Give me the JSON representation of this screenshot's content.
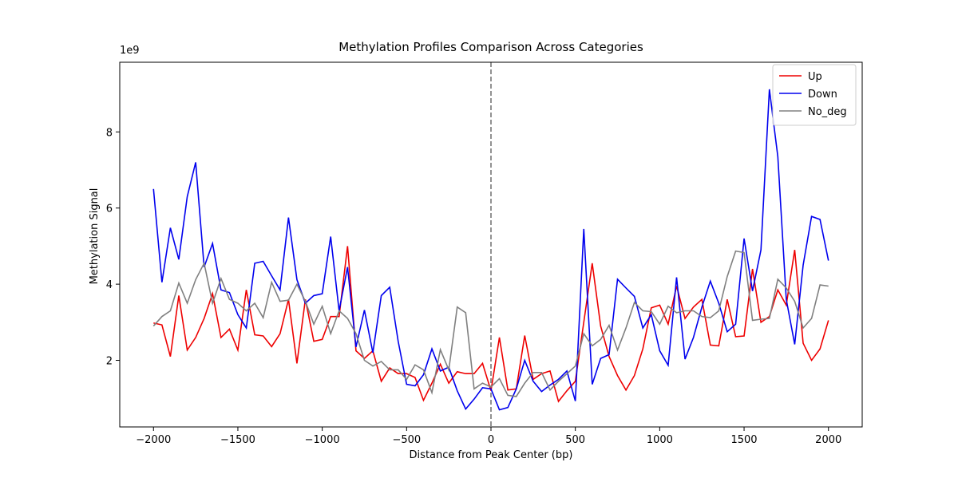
{
  "chart_data": {
    "type": "line",
    "title": "Methylation Profiles Comparison Across Categories",
    "x_label": "Distance from Peak Center (bp)",
    "y_label": "Methylation Signal",
    "y_offset_label": "1e9",
    "x": [
      -2000,
      -1950,
      -1900,
      -1850,
      -1800,
      -1750,
      -1700,
      -1650,
      -1600,
      -1550,
      -1500,
      -1450,
      -1400,
      -1350,
      -1300,
      -1250,
      -1200,
      -1150,
      -1100,
      -1050,
      -1000,
      -950,
      -900,
      -850,
      -800,
      -750,
      -700,
      -650,
      -600,
      -550,
      -500,
      -450,
      -400,
      -350,
      -300,
      -250,
      -200,
      -150,
      -100,
      -50,
      0,
      50,
      100,
      150,
      200,
      250,
      300,
      350,
      400,
      450,
      500,
      550,
      600,
      650,
      700,
      750,
      800,
      850,
      900,
      950,
      1000,
      1050,
      1100,
      1150,
      1200,
      1250,
      1300,
      1350,
      1400,
      1450,
      1500,
      1550,
      1600,
      1650,
      1700,
      1750,
      1800,
      1850,
      1900,
      1950,
      2000
    ],
    "series": [
      {
        "name": "Up",
        "color": "#ee0000",
        "values": [
          2.98,
          2.93,
          2.1,
          3.7,
          2.27,
          2.6,
          3.1,
          3.75,
          2.6,
          2.82,
          2.27,
          3.85,
          2.67,
          2.64,
          2.36,
          2.7,
          3.6,
          1.92,
          3.6,
          2.5,
          2.55,
          3.15,
          3.15,
          5.0,
          2.25,
          2.05,
          2.25,
          1.45,
          1.8,
          1.65,
          1.65,
          1.55,
          0.95,
          1.4,
          1.9,
          1.4,
          1.7,
          1.65,
          1.65,
          1.92,
          1.2,
          2.6,
          1.22,
          1.25,
          2.65,
          1.5,
          1.65,
          1.72,
          0.92,
          1.2,
          1.45,
          3.0,
          4.55,
          2.9,
          2.1,
          1.6,
          1.22,
          1.6,
          2.3,
          3.38,
          3.45,
          2.95,
          3.95,
          3.1,
          3.4,
          3.6,
          2.4,
          2.38,
          3.6,
          2.62,
          2.64,
          4.4,
          3.0,
          3.15,
          3.85,
          3.45,
          4.9,
          2.45,
          2.0,
          2.3,
          3.05
        ]
      },
      {
        "name": "Down",
        "color": "#0000ee",
        "values": [
          6.5,
          4.05,
          5.48,
          4.65,
          6.3,
          7.2,
          4.45,
          5.07,
          3.85,
          3.78,
          3.2,
          2.85,
          4.55,
          4.6,
          4.22,
          3.85,
          5.75,
          4.12,
          3.5,
          3.7,
          3.75,
          5.25,
          3.3,
          4.45,
          2.35,
          3.32,
          2.2,
          3.7,
          3.92,
          2.5,
          1.37,
          1.33,
          1.62,
          2.3,
          1.72,
          1.82,
          1.2,
          0.72,
          0.98,
          1.28,
          1.25,
          0.7,
          0.76,
          1.25,
          2.0,
          1.45,
          1.18,
          1.35,
          1.5,
          1.72,
          0.93,
          5.45,
          1.37,
          2.05,
          2.15,
          4.13,
          3.9,
          3.68,
          2.85,
          3.2,
          2.25,
          1.87,
          4.18,
          2.03,
          2.6,
          3.4,
          4.08,
          3.5,
          2.75,
          2.95,
          5.2,
          3.82,
          4.9,
          9.12,
          7.35,
          3.6,
          2.42,
          4.5,
          5.78,
          5.7,
          4.62
        ]
      },
      {
        "name": "No_deg",
        "color": "#808080",
        "values": [
          2.9,
          3.15,
          3.3,
          4.03,
          3.5,
          4.12,
          4.55,
          3.5,
          4.15,
          3.6,
          3.5,
          3.3,
          3.5,
          3.12,
          4.05,
          3.55,
          3.58,
          4.0,
          3.55,
          2.95,
          3.42,
          2.7,
          3.3,
          3.1,
          2.7,
          2.0,
          1.85,
          1.97,
          1.75,
          1.75,
          1.5,
          1.88,
          1.75,
          1.15,
          2.28,
          1.75,
          3.4,
          3.25,
          1.25,
          1.4,
          1.3,
          1.52,
          1.08,
          1.05,
          1.4,
          1.68,
          1.68,
          1.22,
          1.45,
          1.65,
          1.85,
          2.7,
          2.38,
          2.55,
          2.92,
          2.27,
          2.85,
          3.52,
          3.3,
          3.28,
          2.95,
          3.42,
          3.25,
          3.3,
          3.3,
          3.15,
          3.12,
          3.3,
          4.2,
          4.87,
          4.83,
          3.05,
          3.08,
          3.1,
          4.13,
          3.9,
          3.55,
          2.85,
          3.1,
          3.98,
          3.95
        ]
      }
    ],
    "vline": 0,
    "xlim": [
      -2200,
      2200
    ],
    "ylim": [
      0.25,
      9.83
    ],
    "xticks": [
      {
        "value": -2000,
        "label": "−2000"
      },
      {
        "value": -1500,
        "label": "−1500"
      },
      {
        "value": -1000,
        "label": "−1000"
      },
      {
        "value": -500,
        "label": "−500"
      },
      0,
      500,
      1000,
      1500,
      2000
    ],
    "yticks": [
      2,
      4,
      6,
      8
    ],
    "legend": "upper right"
  }
}
